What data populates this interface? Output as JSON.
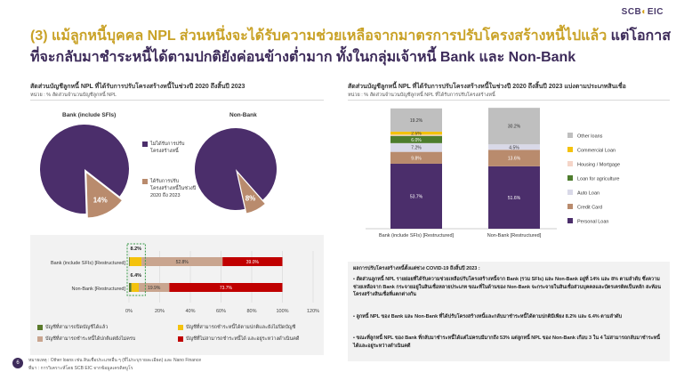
{
  "logo": {
    "brand": "SCB",
    "mark": "EIC"
  },
  "title": {
    "line1_highlight": "(3) แม้ลูกหนี้บุคคล NPL ส่วนหนึ่งจะได้รับความช่วยเหลือจากมาตรการปรับโครงสร้างหนี้ไปแล้ว",
    "line1_rest": " แต่โอกาส",
    "line2": "ที่จะกลับมาชำระหนี้ได้ตามปกติยังค่อนข้างต่ำมาก ทั้งในกลุ่มเจ้าหนี้ Bank และ Non-Bank"
  },
  "left": {
    "subtitle": "สัดส่วนบัญชีลูกหนี้ NPL ที่ได้รับการปรับโครงสร้างหนี้ในช่วงปี 2020 ถึงสิ้นปี 2023",
    "unit": "หน่วย : % สัดส่วนจำนวนบัญชีลูกหนี้ NPL",
    "pie_bank_label": "Bank (include SFIs)",
    "pie_nonbank_label": "Non-Bank",
    "pie_legend": [
      {
        "label": "ไม่ได้รับการปรับโครงสร้างหนี้",
        "color": "#4b2e6b"
      },
      {
        "label": "ได้รับการปรับโครงสร้างหนี้ในช่วงปี 2020 ถึง 2023",
        "color": "#b98b6d"
      }
    ],
    "bar_legend": [
      {
        "label": "บัญชีที่สามารถปิดบัญชีได้แล้ว",
        "color": "#5a7a2a"
      },
      {
        "label": "บัญชีที่สามารถชำระหนี้ได้ตามปกติและยังไม่ปิดบัญชี",
        "color": "#f4c20d"
      },
      {
        "label": "บัญชีที่สามารถชำระหนี้ได้ปกติแต่ยังไม่ครบ",
        "color": "#c9a58f"
      },
      {
        "label": "บัญชีที่ไม่สามารถชำระหนี้ได้ และอยู่ระหว่างดำเนินคดี",
        "color": "#c00000"
      }
    ],
    "callout_top": "8.2%",
    "callout_bottom": "6.4%"
  },
  "right": {
    "subtitle": "สัดส่วนบัญชีลูกหนี้ NPL ที่ได้รับการปรับโครงสร้างหนี้ในช่วงปี 2020 ถึงสิ้นปี 2023 แบ่งตามประเภทสินเชื่อ",
    "unit": "หน่วย : % สัดส่วนจำนวนบัญชีลูกหนี้ NPL ที่ได้รับการปรับโครงสร้างหนี้"
  },
  "chart_data": [
    {
      "type": "pie",
      "title": "Bank (include SFIs)",
      "slices": [
        {
          "label": "ไม่ได้รับการปรับโครงสร้างหนี้",
          "value": 86
        },
        {
          "label": "ได้รับการปรับโครงสร้างหนี้ในช่วงปี 2020 ถึง 2023",
          "value": 14
        }
      ],
      "labels_shown": [
        "14%"
      ]
    },
    {
      "type": "pie",
      "title": "Non-Bank",
      "slices": [
        {
          "label": "ไม่ได้รับการปรับโครงสร้างหนี้",
          "value": 92
        },
        {
          "label": "ได้รับการปรับโครงสร้างหนี้ในช่วงปี 2020 ถึง 2023",
          "value": 8
        }
      ],
      "labels_shown": [
        "8%"
      ]
    },
    {
      "type": "bar",
      "orientation": "horizontal",
      "stacked": true,
      "categories": [
        "Bank (include SFIs) [Restructured]",
        "Non-Bank [Restructured]"
      ],
      "series": [
        {
          "name": "บัญชีที่สามารถปิดบัญชีได้แล้ว",
          "values": [
            0.5,
            1.6
          ]
        },
        {
          "name": "บัญชีที่สามารถชำระหนี้ได้ตามปกติและยังไม่ปิดบัญชี",
          "values": [
            7.7,
            4.8
          ]
        },
        {
          "name": "บัญชีที่สามารถชำระหนี้ได้ปกติแต่ยังไม่ครบ",
          "values": [
            52.8,
            19.9
          ]
        },
        {
          "name": "บัญชีที่ไม่สามารถชำระหนี้ได้ และอยู่ระหว่างดำเนินคดี",
          "values": [
            39.0,
            73.7
          ]
        }
      ],
      "data_labels": [
        [
          "",
          "",
          "52.8%",
          "39.0%"
        ],
        [
          "",
          "",
          "19.9%",
          "73.7%"
        ]
      ],
      "xlim": [
        0,
        120
      ],
      "xticks": [
        "0%",
        "20%",
        "40%",
        "60%",
        "80%",
        "100%",
        "120%"
      ]
    },
    {
      "type": "bar",
      "stacked": true,
      "categories": [
        "Bank (include SFIs) [Restructured]",
        "Non-Bank [Restructured]"
      ],
      "series": [
        {
          "name": "Personal Loan",
          "values": [
            53.7,
            51.6
          ],
          "color": "#4b2e6b"
        },
        {
          "name": "Credit Card",
          "values": [
            9.8,
            13.6
          ],
          "color": "#b98b6d"
        },
        {
          "name": "Auto Loan",
          "values": [
            7.2,
            4.5
          ],
          "color": "#d9d9e8"
        },
        {
          "name": "Loan for agriculture",
          "values": [
            6.0,
            0
          ],
          "color": "#4e7d2e"
        },
        {
          "name": "Housing / Mortgage",
          "values": [
            1.0,
            0
          ],
          "color": "#f5d5c8"
        },
        {
          "name": "Commercial Loan",
          "values": [
            2.5,
            0
          ],
          "color": "#f4c20d"
        },
        {
          "name": "Other loans",
          "values": [
            19.2,
            30.2
          ],
          "color": "#bfbfbf"
        }
      ],
      "data_labels": [
        [
          "53.7%",
          "9.8%",
          "7.2%",
          "6.0%",
          "",
          "2.5%",
          "19.2%"
        ],
        [
          "51.6%",
          "13.6%",
          "4.5%",
          "",
          "",
          "",
          "30.2%"
        ]
      ],
      "ylim": [
        0,
        100
      ]
    }
  ],
  "notes": {
    "title": "ผลการปรับโครงสร้างหนี้ตั้งแต่ช่วง COVID-19 ถึงสิ้นปี 2023 :",
    "bullets": [
      "สัดส่วนลูกหนี้ NPL รายย่อยที่ได้รับความช่วยเหลือปรับโครงสร้างหนี้จาก Bank (รวม SFIs) และ Non-Bank อยู่ที่ 14% และ 8% ตามลำดับ ซึ่งความช่วยเหลือจาก Bank กระจายอยู่ในสินเชื่อหลายประเภท ขณะที่ในด้านของ Non-Bank จะกระจายในสินเชื่อส่วนบุคคลและบัตรเครดิตเป็นหลัก สะท้อนโครงสร้างสินเชื่อที่แตกต่างกัน",
      "ลูกหนี้ NPL ของ Bank และ Non-Bank ที่ได้ปรับโครงสร้างหนี้และกลับมาชำระหนี้ได้ตามปกติมีเพียง 8.2% และ 6.4% ตามลำดับ",
      "ขณะที่ลูกหนี้ NPL ของ Bank ที่กลับมาชำระหนี้ได้แต่ไม่ครบมีมากถึง 53% แต่ลูกหนี้ NPL ของ Non-Bank เกือบ 3 ใน 4 ไม่สามารถกลับมาชำระหนี้ได้และอยู่ระหว่างดำเนินคดี"
    ]
  },
  "footer": {
    "line1": "หมายเหตุ : Other loans เช่น สินเชื่อประเภทอื่น ๆ (ที่ไม่ระบุรายละเอียด) และ Nano Finance",
    "line2": "ที่มา : การวิเคราะห์โดย SCB EIC จากข้อมูลเครดิตบูโร",
    "page": "6"
  }
}
